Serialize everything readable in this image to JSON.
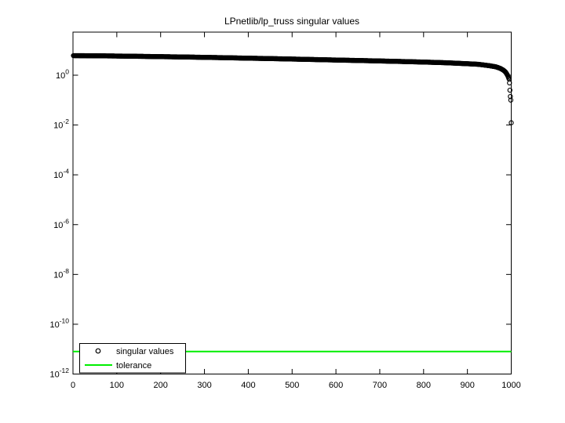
{
  "figure": {
    "background": "#ffffff",
    "frame_color": "#000000"
  },
  "chart_data": {
    "type": "scatter",
    "title": "LPnetlib/lp_truss singular values",
    "xlabel": "",
    "ylabel": "",
    "grid": false,
    "x_axis": {
      "min": 0,
      "max": 1000,
      "ticks": [
        0,
        100,
        200,
        300,
        400,
        500,
        600,
        700,
        800,
        900,
        1000
      ]
    },
    "y_axis": {
      "scale": "log10",
      "tick_label_base": "10",
      "tick_exponents": [
        0,
        -2,
        -4,
        -6,
        -8,
        -10,
        -12
      ],
      "min_exponent": -12,
      "max_exponent": 1.73
    },
    "legend": {
      "position": "southwest",
      "entries": [
        "singular values",
        "tolerance"
      ]
    },
    "series": [
      {
        "name": "singular values",
        "style": "scatter",
        "marker": "circle",
        "color": "#000000",
        "n_points": 1000,
        "anchors_index_value": [
          [
            1,
            6.11
          ],
          [
            50,
            6.02
          ],
          [
            100,
            5.89
          ],
          [
            150,
            5.73
          ],
          [
            200,
            5.56
          ],
          [
            250,
            5.4
          ],
          [
            300,
            5.21
          ],
          [
            350,
            5.03
          ],
          [
            400,
            4.82
          ],
          [
            450,
            4.65
          ],
          [
            500,
            4.45
          ],
          [
            550,
            4.26
          ],
          [
            600,
            4.07
          ],
          [
            650,
            3.9
          ],
          [
            700,
            3.73
          ],
          [
            750,
            3.55
          ],
          [
            800,
            3.37
          ],
          [
            850,
            3.17
          ],
          [
            900,
            2.89
          ],
          [
            925,
            2.74
          ],
          [
            950,
            2.41
          ],
          [
            965,
            2.17
          ],
          [
            975,
            1.88
          ],
          [
            982,
            1.6
          ],
          [
            987,
            1.34
          ],
          [
            991,
            1.04
          ],
          [
            993,
            0.87
          ],
          [
            995,
            0.7
          ],
          [
            996,
            0.49
          ],
          [
            997,
            0.25
          ],
          [
            998,
            0.14
          ],
          [
            999,
            0.1
          ],
          [
            1000,
            0.0123
          ]
        ]
      },
      {
        "name": "tolerance",
        "style": "hline",
        "color": "#00ee00",
        "value": 8e-12
      }
    ]
  }
}
